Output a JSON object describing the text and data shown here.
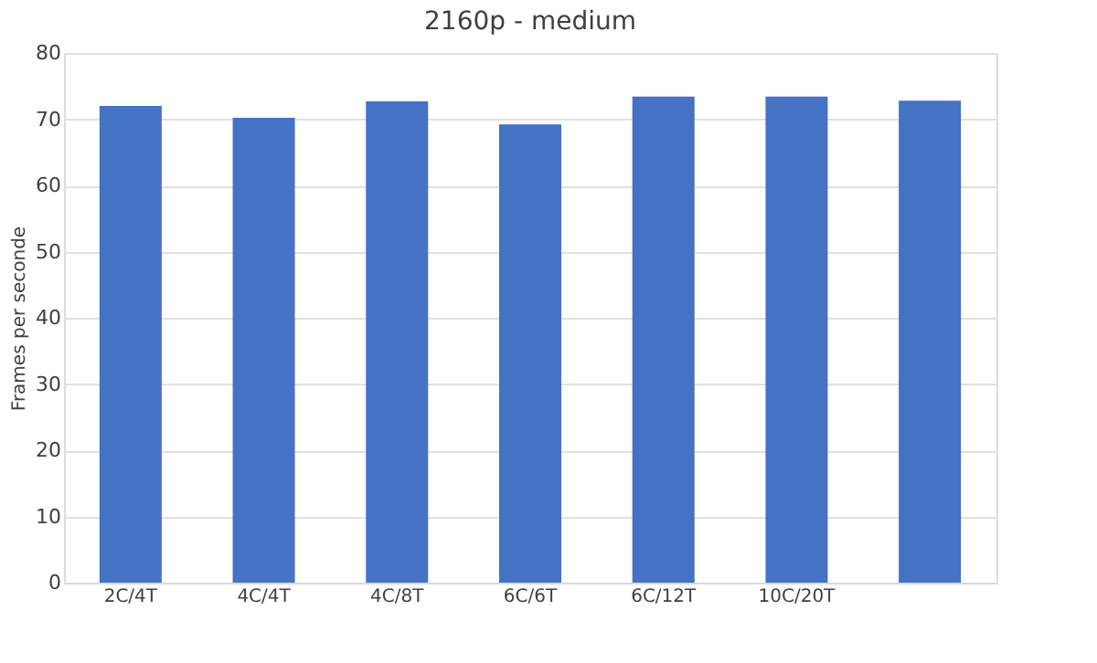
{
  "chart_data": {
    "type": "bar",
    "title": "2160p - medium",
    "ylabel": "Frames per seconde",
    "categories": [
      "2C/4T",
      "4C/4T",
      "4C/8T",
      "6C/6T",
      "6C/12T",
      "10C/20T",
      null
    ],
    "values": [
      72.0,
      70.2,
      72.7,
      69.2,
      73.4,
      73.4,
      72.8
    ],
    "color": "#4472c4",
    "ylim": [
      0,
      80
    ],
    "yticks": [
      0,
      10,
      20,
      30,
      40,
      50,
      60,
      70,
      80
    ],
    "grid": "y"
  }
}
